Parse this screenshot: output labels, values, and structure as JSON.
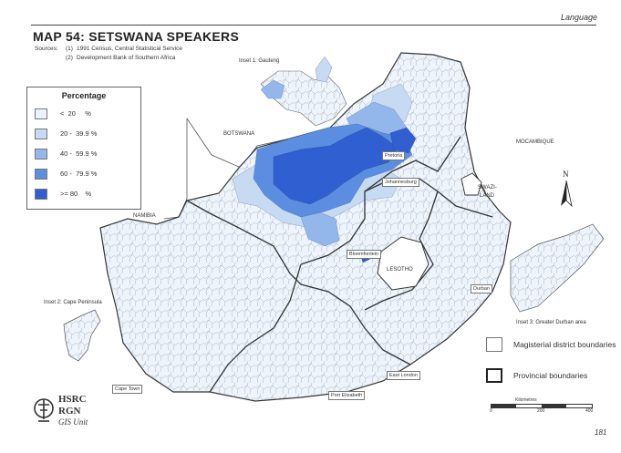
{
  "header": {
    "section": "Language"
  },
  "title": "MAP 54: SETSWANA SPEAKERS",
  "sources": {
    "label": "Sources:",
    "items": [
      {
        "num": "(1)",
        "text": "1991 Census, Central Statistical Service"
      },
      {
        "num": "(2)",
        "text": "Development Bank of Southern Africa"
      }
    ]
  },
  "legend": {
    "title": "Percentage",
    "items": [
      {
        "label": "<  20     %",
        "color": "#eaf2fb"
      },
      {
        "label": "20 -  39.9 %",
        "color": "#c6daf2"
      },
      {
        "label": "40 -  59.9 %",
        "color": "#93b7ea"
      },
      {
        "label": "60 -  79.9 %",
        "color": "#5b8ee0"
      },
      {
        "label": ">= 80    %",
        "color": "#2f5fd0"
      }
    ]
  },
  "places": {
    "botswana": "BOTSWANA",
    "namibia": "NAMIBIA",
    "mocambique": "MOCAMBIQUE",
    "swaziland_1": "SWAZI-",
    "swaziland_2": "LAND",
    "lesotho": "LESOTHO",
    "pretoria": "Pretoria",
    "johannesburg": "Johannesburg",
    "bloemfontein": "Bloemfontein",
    "durban": "Durban",
    "east_london": "East London",
    "port_elizabeth": "Port Elizabeth",
    "cape_town": "Cape Town"
  },
  "insets": {
    "gauteng": "Inset 1: Gauteng",
    "cape_peninsula": "Inset 2: Cape Peninsula",
    "durban": "Inset 3: Greater Durban area"
  },
  "boundary_legend": {
    "magisterial": "Magisterial district boundaries",
    "provincial": "Provincial boundaries"
  },
  "scale": {
    "title": "Kilometres",
    "ticks": [
      "0",
      "200",
      "400"
    ]
  },
  "north": "N",
  "logo": {
    "line1": "HSRC",
    "line2": "RGN",
    "line3": "GIS Unit"
  },
  "page_number": "181"
}
